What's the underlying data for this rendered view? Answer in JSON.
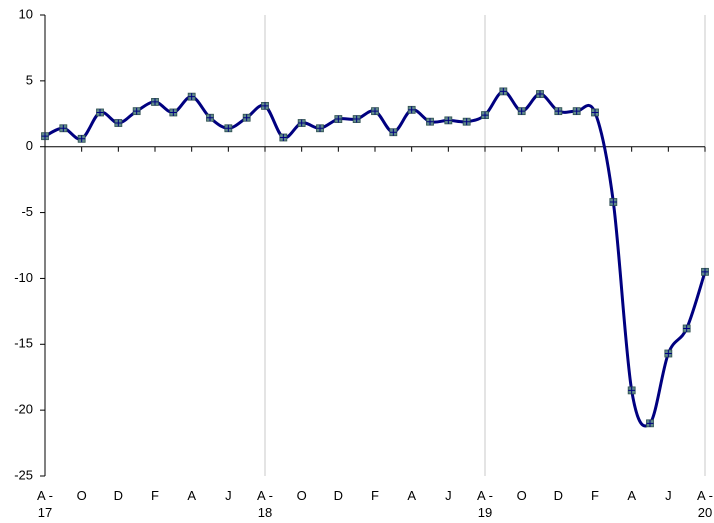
{
  "chart_data": {
    "type": "line",
    "categories": [
      "A -\n17",
      null,
      "O",
      null,
      "D",
      null,
      "F",
      null,
      "A",
      null,
      "J",
      null,
      "A -\n18",
      null,
      "O",
      null,
      "D",
      null,
      "F",
      null,
      "A",
      null,
      "J",
      null,
      "A -\n19",
      null,
      "O",
      null,
      "D",
      null,
      "F",
      null,
      "A",
      null,
      "J",
      null,
      "A -\n20"
    ],
    "series": [
      {
        "name": null,
        "color": "#000080",
        "marker_color": "#5f8a8b",
        "values": [
          0.8,
          1.4,
          0.6,
          2.6,
          1.8,
          2.7,
          3.4,
          2.6,
          3.8,
          2.2,
          1.4,
          2.2,
          3.1,
          0.7,
          1.8,
          1.4,
          2.1,
          2.1,
          2.7,
          1.1,
          2.8,
          1.9,
          2.0,
          1.9,
          2.4,
          4.2,
          2.7,
          4.0,
          2.7,
          2.7,
          2.6,
          -4.2,
          -18.5,
          -21.0,
          -15.7,
          -13.8,
          -9.5
        ]
      }
    ],
    "ylim": [
      -25,
      10
    ],
    "yticks": [
      -25,
      -20,
      -15,
      -10,
      -5,
      0,
      5,
      10
    ],
    "grid": true
  }
}
